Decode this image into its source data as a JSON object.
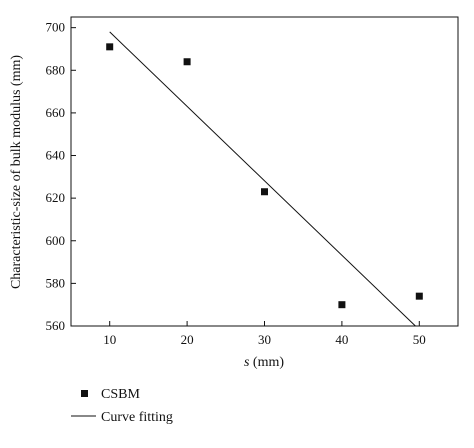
{
  "chart_data": {
    "type": "scatter",
    "xlabel_italic": "s",
    "xlabel_rest": " (mm)",
    "ylabel": "Characteristic-size of bulk modulus (mm)",
    "xlim": [
      5,
      55
    ],
    "ylim": [
      560,
      705
    ],
    "xticks": [
      10,
      20,
      30,
      40,
      50
    ],
    "yticks": [
      560,
      580,
      600,
      620,
      640,
      660,
      680,
      700
    ],
    "grid": false,
    "legend_placement": "bottom-left, below plot",
    "series": [
      {
        "name": "CSBM",
        "kind": "markers",
        "marker": "square",
        "x": [
          10,
          20,
          30,
          40,
          50
        ],
        "y": [
          691,
          684,
          623,
          570,
          574
        ]
      },
      {
        "name": "Curve fitting",
        "kind": "line",
        "x": [
          10,
          49.5
        ],
        "y": [
          698,
          560
        ]
      }
    ],
    "colors": {
      "marks": "#111111",
      "background": "#ffffff"
    }
  }
}
